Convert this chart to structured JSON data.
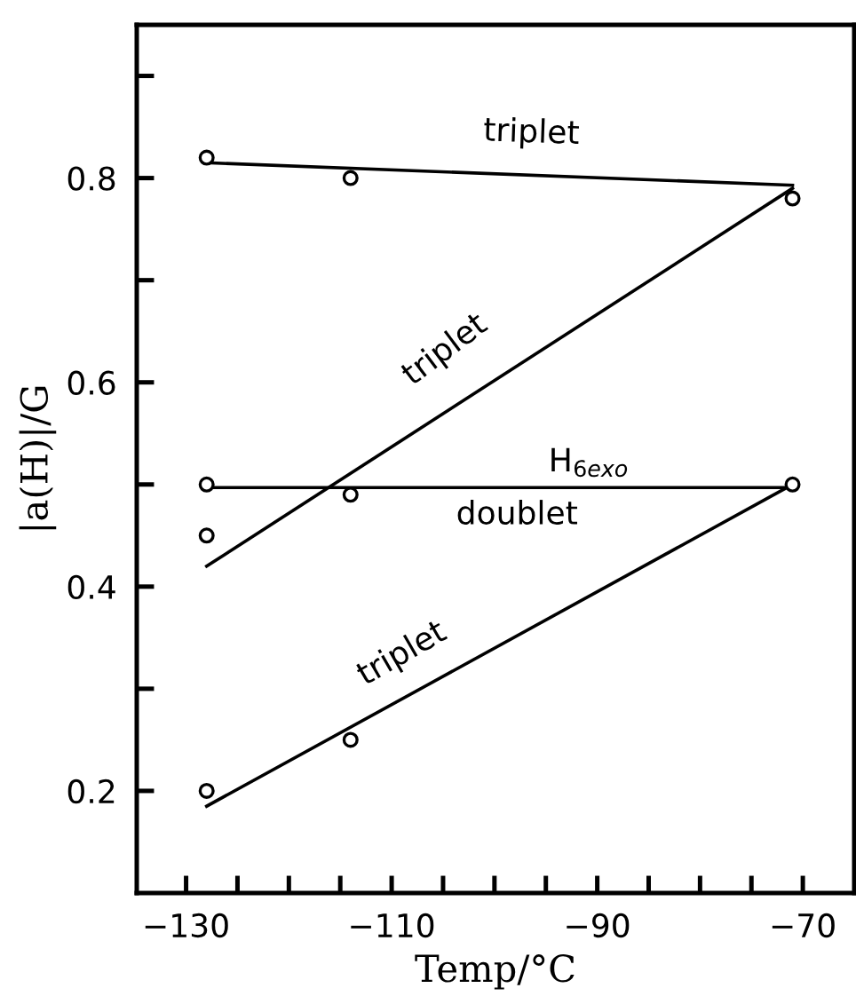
{
  "chart_data": {
    "type": "scatter",
    "xlabel": "Temp/°C",
    "ylabel": "|a(H)|/G",
    "xlim": [
      -134.8,
      -65
    ],
    "ylim": [
      0.1,
      0.95
    ],
    "xticks": [
      -130,
      {
        "value": -125,
        "label": null
      },
      -110,
      {
        "value": -120,
        "label": null
      },
      {
        "value": -115,
        "label": null
      },
      {
        "value": -105,
        "label": null
      },
      {
        "value": -100,
        "label": null
      },
      {
        "value": -95,
        "label": null
      },
      -90,
      {
        "value": -85,
        "label": null
      },
      {
        "value": -80,
        "label": null
      },
      {
        "value": -75,
        "label": null
      },
      -70
    ],
    "yticks": [
      0.2,
      {
        "value": 0.3,
        "label": null
      },
      0.4,
      {
        "value": 0.5,
        "label": null
      },
      0.6,
      {
        "value": 0.7,
        "label": null
      },
      0.8,
      {
        "value": 0.9,
        "label": null
      }
    ],
    "grid": false,
    "legend": false,
    "series": [
      {
        "marker": "circle",
        "color": "#000000",
        "x": [
          -128,
          -114,
          -71,
          -128,
          -114,
          -128,
          -71,
          -128,
          -114
        ],
        "values": [
          0.82,
          0.8,
          0.78,
          0.5,
          0.49,
          0.45,
          0.5,
          0.2,
          0.25
        ]
      },
      {
        "type": "line",
        "color": "#000000",
        "x": [
          -128,
          -71
        ],
        "values": [
          0.815,
          0.793
        ]
      },
      {
        "type": "line",
        "color": "#000000",
        "x": [
          -128,
          -71
        ],
        "values": [
          0.42,
          0.79
        ]
      },
      {
        "type": "line",
        "color": "#000000",
        "x": [
          -128,
          -71
        ],
        "values": [
          0.497,
          0.497
        ]
      },
      {
        "type": "line",
        "color": "#000000",
        "x": [
          -128,
          -71
        ],
        "values": [
          0.185,
          0.5
        ]
      }
    ],
    "annotations": [
      "triplet",
      "triplet",
      "H$_{6exo}$",
      "doublet",
      "triplet"
    ]
  }
}
